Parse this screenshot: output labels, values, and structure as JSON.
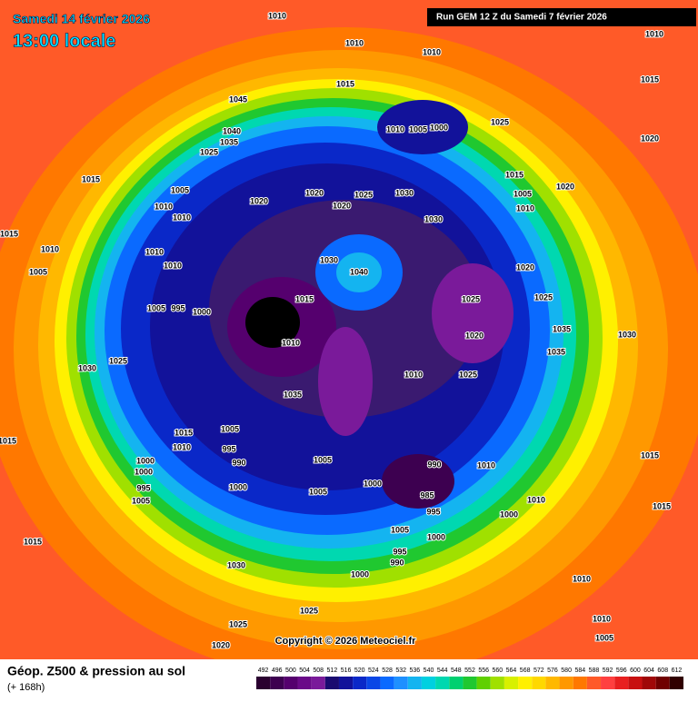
{
  "header": {
    "date": "Samedi 14 février 2026",
    "time": "13:00 locale",
    "run": "Run GEM 12 Z du Samedi 7 février 2026"
  },
  "copyright": "Copyright © 2026 Meteociel.fr",
  "legend": {
    "title": "Géop. Z500 & pression au sol",
    "subtitle": "(+ 168h)",
    "values": [
      492,
      496,
      500,
      504,
      508,
      512,
      516,
      520,
      524,
      528,
      532,
      536,
      540,
      544,
      548,
      552,
      556,
      560,
      564,
      568,
      572,
      576,
      580,
      584,
      588,
      592,
      596,
      600,
      604,
      608,
      612
    ],
    "colors": [
      "#2a0030",
      "#3d0050",
      "#55006e",
      "#6a0a88",
      "#7a1a9a",
      "#1a0a70",
      "#12129a",
      "#0a28c8",
      "#0a46e6",
      "#0a6aff",
      "#1e90ff",
      "#14b4f0",
      "#00d0e0",
      "#00d8b0",
      "#00d070",
      "#20c830",
      "#60d000",
      "#a0e000",
      "#d8f000",
      "#fff000",
      "#ffd800",
      "#ffb800",
      "#ff9800",
      "#ff7800",
      "#ff5a28",
      "#ff4040",
      "#e82020",
      "#c81010",
      "#a00808",
      "#700000",
      "#300000"
    ]
  },
  "pressure_labels": [
    1010,
    1010,
    1010,
    1010,
    1015,
    1015,
    1045,
    1040,
    1035,
    1025,
    1010,
    1005,
    1000,
    1025,
    1020,
    1015,
    1005,
    1010,
    1010,
    1020,
    1020,
    1025,
    1030,
    1020,
    1030,
    1015,
    1005,
    1010,
    1020,
    1015,
    1010,
    1005,
    1010,
    1010,
    1030,
    1040,
    1020,
    1025,
    1025,
    1020,
    1015,
    995,
    1005,
    1000,
    1010,
    1035,
    1035,
    1030,
    1030,
    1025,
    1010,
    1025,
    1035,
    1005,
    1015,
    1010,
    995,
    990,
    1000,
    1000,
    995,
    1005,
    1000,
    1005,
    1005,
    990,
    1000,
    985,
    995,
    1010,
    1010,
    1000,
    1005,
    1000,
    995,
    990,
    1000,
    1015,
    1030,
    1025,
    1025,
    1020,
    1010,
    1010,
    1005,
    1015,
    1015,
    1015
  ]
}
